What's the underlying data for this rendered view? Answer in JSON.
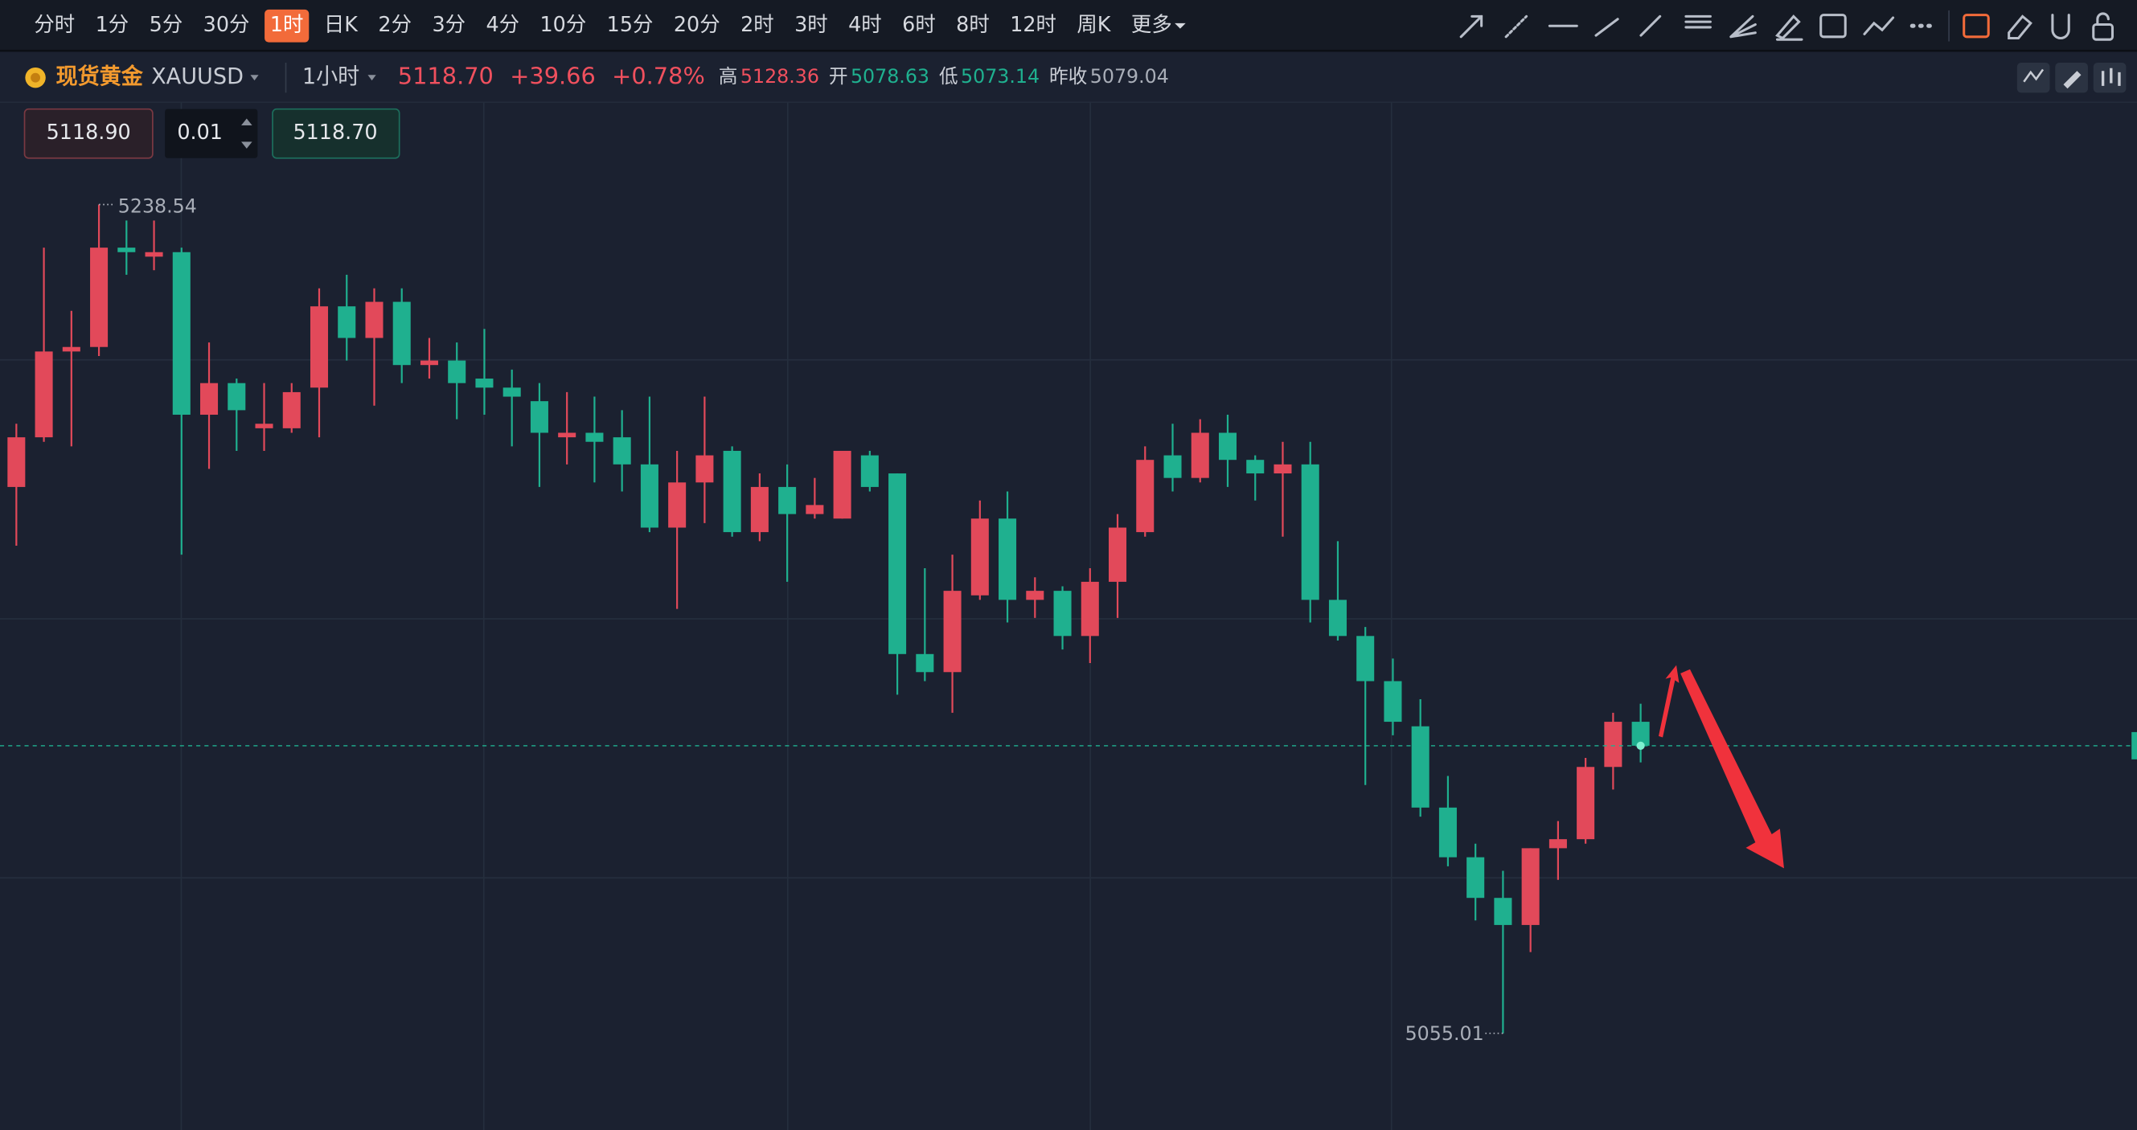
{
  "toolbar": {
    "timeframes": [
      "分时",
      "1分",
      "5分",
      "30分",
      "1时",
      "日K",
      "2分",
      "3分",
      "4分",
      "10分",
      "15分",
      "20分",
      "2时",
      "3时",
      "4时",
      "6时",
      "8时",
      "12时",
      "周K",
      "更多"
    ],
    "active_index": 4
  },
  "symbol": {
    "name": "现货黄金",
    "code": "XAUUSD",
    "interval": "1小时",
    "price": "5118.70",
    "change": "+39.66",
    "change_pct": "+0.78%",
    "stats": [
      {
        "label": "高",
        "value": "5128.36"
      },
      {
        "label": "开",
        "value": "5078.63"
      },
      {
        "label": "低",
        "value": "5073.14"
      },
      {
        "label": "昨收",
        "value": "5079.04"
      }
    ]
  },
  "order": {
    "sell": "5118.90",
    "lots": "0.01",
    "buy": "5118.70"
  },
  "chart_data": {
    "type": "candlestick",
    "up_color": "#e2495a",
    "down_color": "#1fb08f",
    "ylim": [
      5033.6,
      5261.2
    ],
    "open": [
      5176,
      5187,
      5206,
      5207,
      5229,
      5227,
      5228,
      5192,
      5199,
      5189,
      5189,
      5198,
      5216,
      5209,
      5217,
      5203,
      5204,
      5200,
      5198,
      5195,
      5187,
      5188,
      5187,
      5181,
      5167,
      5177,
      5184,
      5166,
      5176,
      5170,
      5169,
      5183,
      5179,
      5139,
      5135,
      5152,
      5169,
      5151,
      5153,
      5143,
      5155,
      5166,
      5183,
      5178,
      5188,
      5182,
      5179,
      5181,
      5151,
      5143,
      5133,
      5123,
      5105,
      5094,
      5085,
      5079,
      5096,
      5098,
      5114,
      5124
    ],
    "high": [
      5190,
      5229,
      5215,
      5238.54,
      5235,
      5235,
      5229,
      5208,
      5200,
      5199,
      5199,
      5220,
      5223,
      5220,
      5220,
      5209,
      5208,
      5211,
      5202,
      5199,
      5197,
      5196,
      5193,
      5196,
      5184,
      5196,
      5185,
      5179,
      5181,
      5178,
      5184,
      5184,
      5179,
      5158,
      5161,
      5173,
      5175,
      5156,
      5154,
      5158,
      5170,
      5185,
      5190,
      5191,
      5192,
      5183,
      5186,
      5186,
      5164,
      5145,
      5138,
      5129,
      5112,
      5097,
      5091,
      5096,
      5102,
      5116,
      5126,
      5128
    ],
    "low": [
      5163,
      5186,
      5185,
      5205,
      5223,
      5224,
      5161,
      5180,
      5184,
      5184,
      5188,
      5187,
      5204,
      5194,
      5199,
      5200,
      5191,
      5192,
      5185,
      5176,
      5181,
      5177,
      5175,
      5166,
      5149,
      5168,
      5165,
      5164,
      5155,
      5169,
      5169,
      5175,
      5130,
      5133,
      5126,
      5151,
      5146,
      5147,
      5140,
      5137,
      5147,
      5165,
      5175,
      5177,
      5176,
      5173,
      5165,
      5146,
      5142,
      5110,
      5121,
      5103,
      5092,
      5080,
      5055.01,
      5073,
      5089,
      5097,
      5109,
      5115
    ],
    "close": [
      5187,
      5206,
      5207,
      5229,
      5228,
      5228,
      5192,
      5199,
      5193,
      5190,
      5197,
      5216,
      5209,
      5217,
      5203,
      5204,
      5199,
      5198,
      5196,
      5188,
      5188,
      5186,
      5181,
      5167,
      5177,
      5183,
      5166,
      5176,
      5170,
      5172,
      5184,
      5176,
      5139,
      5135,
      5153,
      5169,
      5151,
      5153,
      5143,
      5155,
      5167,
      5182,
      5178,
      5188,
      5182,
      5179,
      5181,
      5151,
      5143,
      5133,
      5124,
      5105,
      5094,
      5085,
      5079,
      5096,
      5098,
      5114,
      5124,
      5118.7
    ]
  }
}
